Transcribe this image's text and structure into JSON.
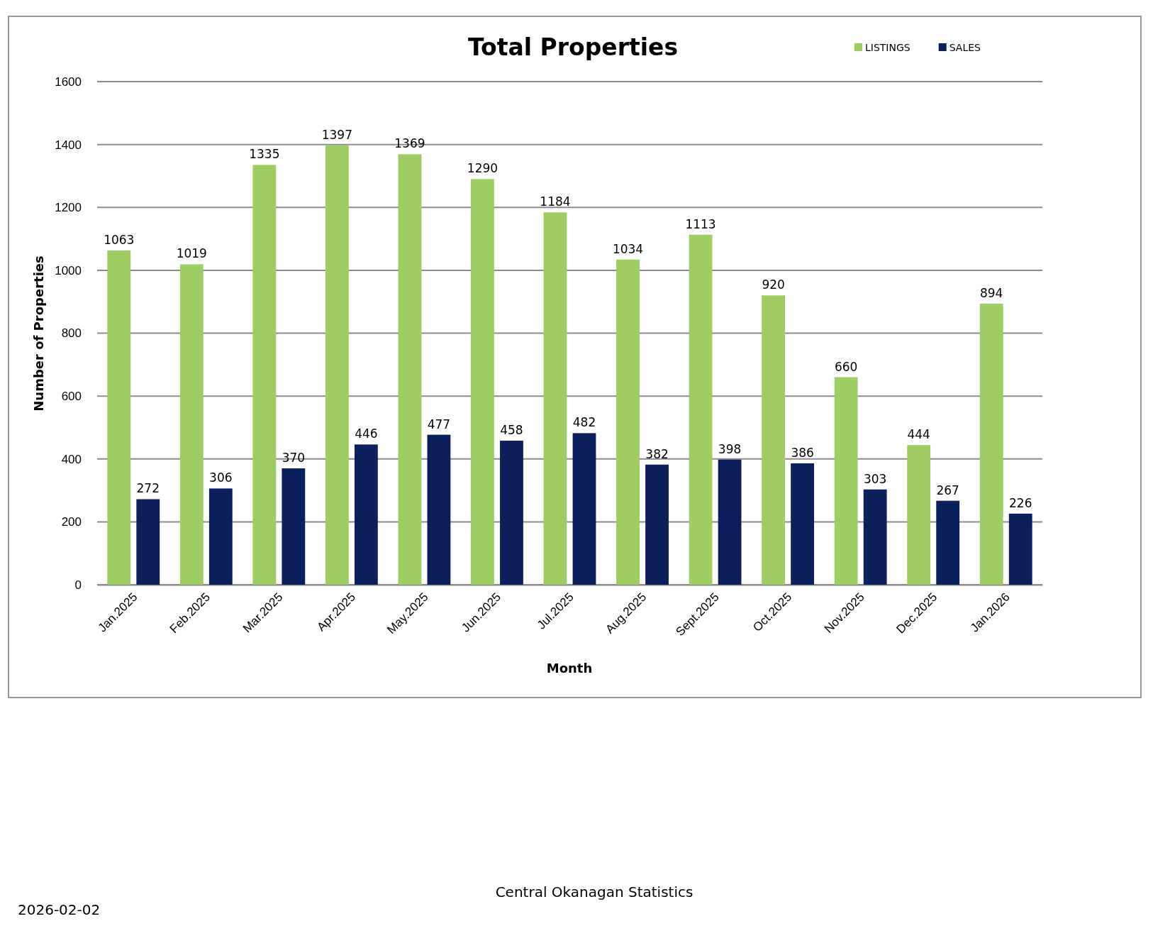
{
  "chart_data": {
    "type": "bar",
    "title": "Total Properties",
    "xlabel": "Month",
    "ylabel": "Number of Properties",
    "categories": [
      "Jan.2025",
      "Feb.2025",
      "Mar.2025",
      "Apr.2025",
      "May.2025",
      "Jun.2025",
      "Jul.2025",
      "Aug.2025",
      "Sept.2025",
      "Oct.2025",
      "Nov.2025",
      "Dec.2025",
      "Jan.2026"
    ],
    "series": [
      {
        "name": "LISTINGS",
        "color": "#9dcd63",
        "values": [
          1063,
          1019,
          1335,
          1397,
          1369,
          1290,
          1184,
          1034,
          1113,
          920,
          660,
          444,
          894
        ]
      },
      {
        "name": "SALES",
        "color": "#0a1f5c",
        "values": [
          272,
          306,
          370,
          446,
          477,
          458,
          482,
          382,
          398,
          386,
          303,
          267,
          226
        ]
      }
    ],
    "ylim": [
      0,
      1600
    ],
    "yticks": [
      0,
      200,
      400,
      600,
      800,
      1000,
      1200,
      1400,
      1600
    ],
    "grid": "y",
    "legend": "top right",
    "data_labels": true,
    "annotations": [
      "Central Okanagan Statistics",
      "2026-02-02"
    ]
  }
}
